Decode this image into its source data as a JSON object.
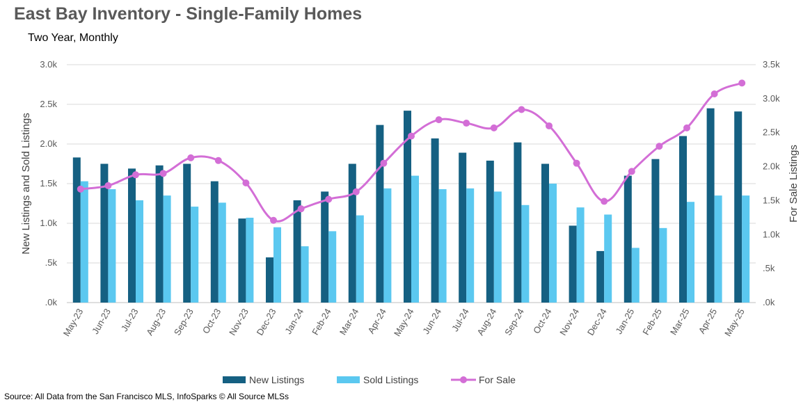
{
  "header": {
    "title": "East Bay Inventory - Single-Family Homes",
    "subtitle": "Two Year, Monthly"
  },
  "footer": {
    "source": "Source: All Data from the San Francisco MLS, InfoSparks © All Source MLSs"
  },
  "chart_data": {
    "type": "bar",
    "title": "East Bay Inventory - Single-Family Homes",
    "subtitle": "Two Year, Monthly",
    "ylabel": "New Listings and Sold Listings",
    "y2label": "For Sale Listings",
    "ylim": [
      0,
      3000
    ],
    "y2lim": [
      0,
      3500
    ],
    "y_ticks": [
      ".0k",
      ".5k",
      "1.0k",
      "1.5k",
      "2.0k",
      "2.5k",
      "3.0k"
    ],
    "y2_ticks": [
      ".0k",
      ".5k",
      "1.0k",
      "1.5k",
      "2.0k",
      "2.5k",
      "3.0k",
      "3.5k"
    ],
    "grid": true,
    "legend_position": "bottom",
    "categories": [
      "May-23",
      "Jun-23",
      "Jul-23",
      "Aug-23",
      "Sep-23",
      "Oct-23",
      "Nov-23",
      "Dec-23",
      "Jan-24",
      "Feb-24",
      "Mar-24",
      "Apr-24",
      "May-24",
      "Jun-24",
      "Jul-24",
      "Aug-24",
      "Sep-24",
      "Oct-24",
      "Nov-24",
      "Dec-24",
      "Jan-25",
      "Feb-25",
      "Mar-25",
      "Apr-25",
      "May-25"
    ],
    "series": [
      {
        "name": "New Listings",
        "type": "bar",
        "axis": "left",
        "color": "#156082",
        "values": [
          1830,
          1750,
          1690,
          1730,
          1750,
          1530,
          1060,
          570,
          1290,
          1400,
          1750,
          2240,
          2420,
          2070,
          1890,
          1790,
          2020,
          1750,
          970,
          650,
          1600,
          1810,
          2100,
          2450,
          2410
        ]
      },
      {
        "name": "Sold Listings",
        "type": "bar",
        "axis": "left",
        "color": "#5bc8f0",
        "values": [
          1530,
          1430,
          1290,
          1350,
          1210,
          1260,
          1070,
          950,
          710,
          900,
          1100,
          1440,
          1600,
          1430,
          1440,
          1400,
          1230,
          1500,
          1200,
          1110,
          690,
          940,
          1270,
          1350,
          1350
        ]
      },
      {
        "name": "For Sale",
        "type": "line",
        "axis": "right",
        "color": "#d36ed6",
        "values": [
          1670,
          1720,
          1880,
          1900,
          2130,
          2090,
          1760,
          1210,
          1380,
          1520,
          1630,
          2050,
          2450,
          2690,
          2640,
          2570,
          2840,
          2600,
          2050,
          1490,
          1930,
          2300,
          2570,
          3070,
          3230
        ]
      }
    ]
  }
}
